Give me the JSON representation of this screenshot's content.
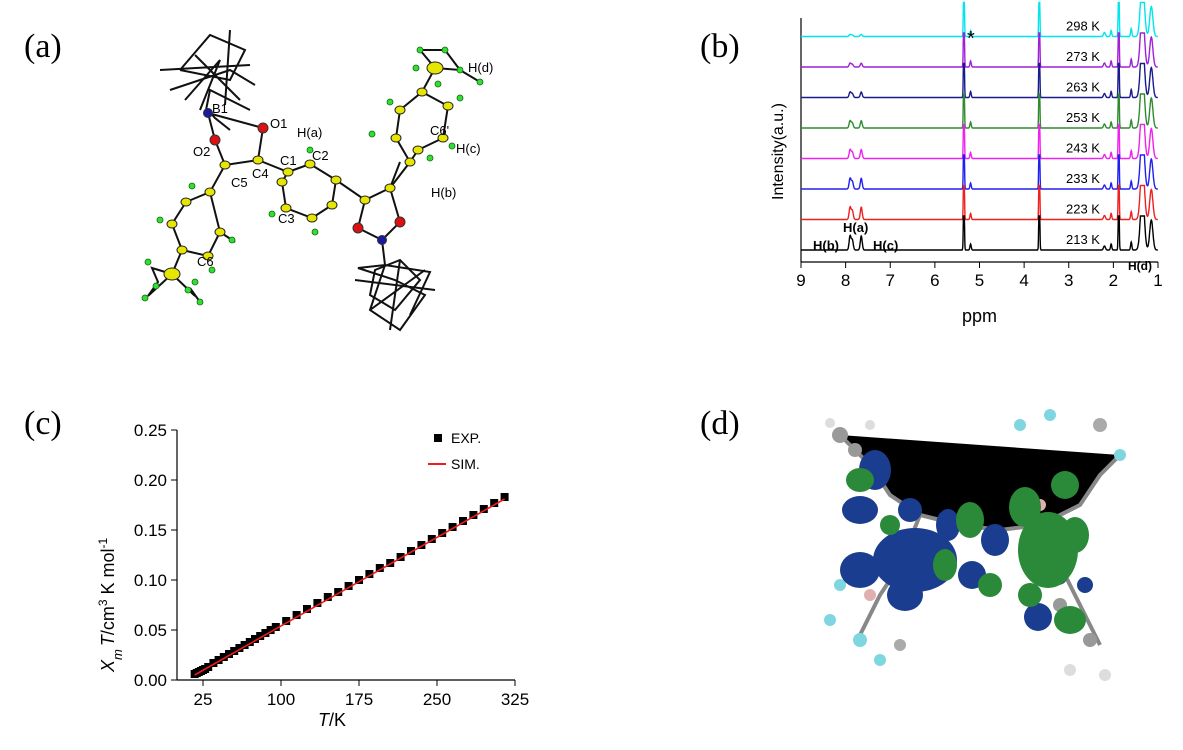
{
  "panels": {
    "a": {
      "label": "(a)"
    },
    "b": {
      "label": "(b)"
    },
    "c": {
      "label": "(c)"
    },
    "d": {
      "label": "(d)"
    }
  },
  "structure_a": {
    "atom_labels": [
      "B1",
      "O1",
      "O2",
      "H(a)",
      "C1",
      "C2",
      "C4",
      "C5",
      "C3",
      "C6",
      "C6'",
      "H(c)",
      "H(b)",
      "H(d)"
    ]
  },
  "chart_data": [
    {
      "panel": "b",
      "type": "line",
      "xlabel": "ppm",
      "ylabel": "Intensity(a.u.)",
      "xlim": [
        9,
        1
      ],
      "xticks": [
        "9",
        "8",
        "7",
        "6",
        "5",
        "4",
        "3",
        "2",
        "1"
      ],
      "series": [
        {
          "name": "298 K",
          "color": "#00e5ee"
        },
        {
          "name": "273 K",
          "color": "#a020d8"
        },
        {
          "name": "263 K",
          "color": "#1a1a8c"
        },
        {
          "name": "253 K",
          "color": "#2e8b2e"
        },
        {
          "name": "243 K",
          "color": "#ee22ee"
        },
        {
          "name": "233 K",
          "color": "#2020ee"
        },
        {
          "name": "223 K",
          "color": "#ee2020"
        },
        {
          "name": "213 K",
          "color": "#000000"
        }
      ],
      "annotations": [
        "*",
        "H(a)",
        "H(b)",
        "H(c)",
        "H(d)"
      ]
    },
    {
      "panel": "c",
      "type": "scatter",
      "xlabel": "T/K",
      "ylabel": "X_m T/cm3 K mol-1",
      "xlim": [
        0,
        325
      ],
      "ylim": [
        0,
        0.25
      ],
      "xticks": [
        "25",
        "100",
        "175",
        "250",
        "325"
      ],
      "yticks": [
        "0.00",
        "0.05",
        "0.10",
        "0.15",
        "0.20",
        "0.25"
      ],
      "legend": {
        "position": "top-right",
        "entries": [
          "EXP.",
          "SIM."
        ]
      },
      "series": [
        {
          "name": "EXP.",
          "color": "#000000",
          "x": [
            2,
            4,
            6,
            8,
            10,
            12,
            15,
            20,
            25,
            30,
            35,
            40,
            45,
            50,
            55,
            60,
            65,
            70,
            75,
            80,
            90,
            100,
            110,
            120,
            130,
            140,
            150,
            160,
            170,
            180,
            190,
            200,
            210,
            220,
            230,
            240,
            250,
            260,
            270,
            280,
            290,
            300
          ],
          "y": [
            0.006,
            0.007,
            0.008,
            0.009,
            0.01,
            0.011,
            0.013,
            0.017,
            0.02,
            0.023,
            0.026,
            0.029,
            0.032,
            0.035,
            0.038,
            0.041,
            0.044,
            0.047,
            0.05,
            0.053,
            0.059,
            0.065,
            0.071,
            0.077,
            0.083,
            0.088,
            0.094,
            0.1,
            0.106,
            0.112,
            0.117,
            0.123,
            0.129,
            0.135,
            0.141,
            0.147,
            0.153,
            0.159,
            0.165,
            0.171,
            0.177,
            0.183
          ]
        },
        {
          "name": "SIM.",
          "color": "#ee1c1c",
          "x": [
            2,
            300
          ],
          "y": [
            0.005,
            0.181
          ]
        }
      ]
    }
  ]
}
